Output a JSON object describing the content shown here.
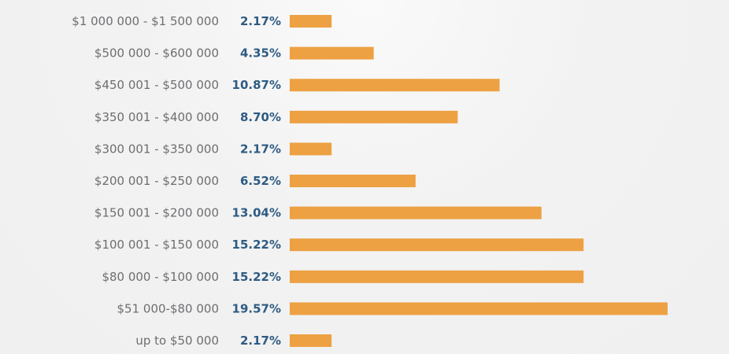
{
  "chart_data": {
    "type": "bar",
    "orientation": "horizontal",
    "categories": [
      "$1 000 000 - $1 500 000",
      "$500 000 - $600 000",
      "$450 001 - $500 000",
      "$350 001 - $400 000",
      "$300 001 - $350 000",
      "$200 001 - $250 000",
      "$150 001 - $200 000",
      "$100 001 - $150 000",
      "$80 000 - $100 000",
      "$51 000-$80 000",
      "up to $50 000"
    ],
    "values": [
      2.17,
      4.35,
      10.87,
      8.7,
      2.17,
      6.52,
      13.04,
      15.22,
      15.22,
      19.57,
      2.17
    ],
    "value_labels": [
      "2.17%",
      "4.35%",
      "10.87%",
      "8.70%",
      "2.17%",
      "6.52%",
      "13.04%",
      "15.22%",
      "15.22%",
      "19.57%",
      "2.17%"
    ],
    "value_max": 19.57,
    "bar_color": "#eda143",
    "category_label_color": "#6d6e71",
    "value_label_color": "#2e5b82",
    "background_color": "#f0f0f0",
    "title": "",
    "xlabel": "",
    "ylabel": "",
    "grid": false,
    "legend": "none"
  }
}
